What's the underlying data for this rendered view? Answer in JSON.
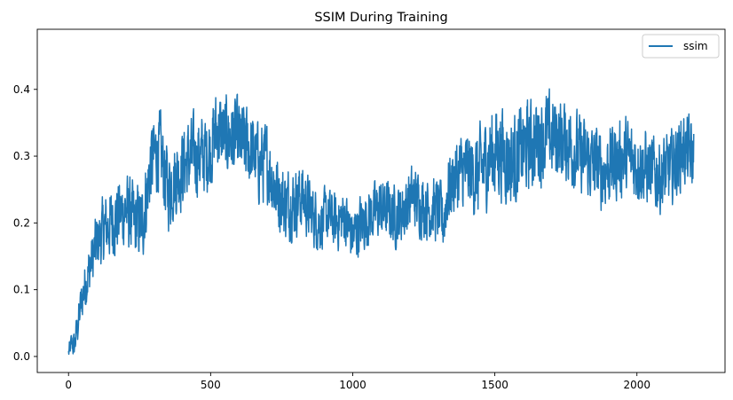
{
  "chart_data": {
    "type": "line",
    "title": "SSIM During Training",
    "xlabel": "",
    "ylabel": "",
    "xlim": [
      -110,
      2310
    ],
    "ylim": [
      -0.024,
      0.49
    ],
    "xticks": [
      0,
      500,
      1000,
      1500,
      2000
    ],
    "xtick_labels": [
      "0",
      "500",
      "1000",
      "1500",
      "2000"
    ],
    "yticks": [
      0.0,
      0.1,
      0.2,
      0.3,
      0.4
    ],
    "ytick_labels": [
      "0.0",
      "0.1",
      "0.2",
      "0.3",
      "0.4"
    ],
    "grid": false,
    "legend": {
      "placement": "top-right",
      "entries": [
        "ssim"
      ]
    },
    "series": [
      {
        "name": "ssim",
        "color": "#1f77b4",
        "anchors": [
          [
            0,
            0.005
          ],
          [
            10,
            0.02
          ],
          [
            20,
            0.015
          ],
          [
            30,
            0.04
          ],
          [
            45,
            0.08
          ],
          [
            60,
            0.11
          ],
          [
            80,
            0.14
          ],
          [
            100,
            0.17
          ],
          [
            125,
            0.19
          ],
          [
            150,
            0.2
          ],
          [
            175,
            0.21
          ],
          [
            200,
            0.22
          ],
          [
            230,
            0.2
          ],
          [
            260,
            0.2
          ],
          [
            290,
            0.29
          ],
          [
            320,
            0.31
          ],
          [
            350,
            0.25
          ],
          [
            380,
            0.27
          ],
          [
            410,
            0.29
          ],
          [
            440,
            0.3
          ],
          [
            470,
            0.3
          ],
          [
            500,
            0.31
          ],
          [
            520,
            0.34
          ],
          [
            550,
            0.33
          ],
          [
            580,
            0.33
          ],
          [
            610,
            0.32
          ],
          [
            640,
            0.31
          ],
          [
            670,
            0.29
          ],
          [
            700,
            0.29
          ],
          [
            730,
            0.25
          ],
          [
            760,
            0.23
          ],
          [
            790,
            0.23
          ],
          [
            820,
            0.24
          ],
          [
            850,
            0.22
          ],
          [
            880,
            0.2
          ],
          [
            910,
            0.21
          ],
          [
            940,
            0.2
          ],
          [
            970,
            0.21
          ],
          [
            1000,
            0.18
          ],
          [
            1030,
            0.2
          ],
          [
            1060,
            0.21
          ],
          [
            1090,
            0.22
          ],
          [
            1120,
            0.22
          ],
          [
            1150,
            0.21
          ],
          [
            1180,
            0.22
          ],
          [
            1210,
            0.24
          ],
          [
            1240,
            0.23
          ],
          [
            1270,
            0.22
          ],
          [
            1300,
            0.22
          ],
          [
            1320,
            0.2
          ],
          [
            1330,
            0.24
          ],
          [
            1360,
            0.27
          ],
          [
            1400,
            0.28
          ],
          [
            1440,
            0.27
          ],
          [
            1480,
            0.3
          ],
          [
            1520,
            0.31
          ],
          [
            1560,
            0.29
          ],
          [
            1600,
            0.31
          ],
          [
            1640,
            0.32
          ],
          [
            1680,
            0.33
          ],
          [
            1720,
            0.33
          ],
          [
            1760,
            0.32
          ],
          [
            1800,
            0.3
          ],
          [
            1840,
            0.29
          ],
          [
            1880,
            0.28
          ],
          [
            1920,
            0.29
          ],
          [
            1960,
            0.3
          ],
          [
            2000,
            0.29
          ],
          [
            2040,
            0.28
          ],
          [
            2080,
            0.27
          ],
          [
            2120,
            0.28
          ],
          [
            2160,
            0.31
          ],
          [
            2200,
            0.3
          ]
        ],
        "noise": [
          [
            0,
            0.01
          ],
          [
            50,
            0.03
          ],
          [
            150,
            0.045
          ],
          [
            300,
            0.05
          ],
          [
            700,
            0.05
          ],
          [
            900,
            0.035
          ],
          [
            1300,
            0.04
          ],
          [
            1500,
            0.06
          ],
          [
            1800,
            0.05
          ],
          [
            2200,
            0.045
          ]
        ]
      }
    ]
  }
}
